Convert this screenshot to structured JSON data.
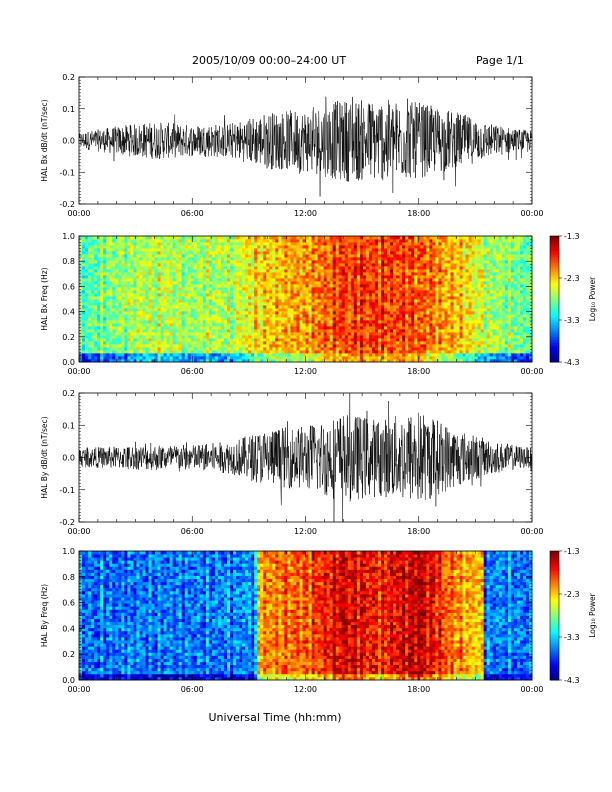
{
  "header": {
    "title": "2005/10/09   00:00–24:00 UT",
    "page": "Page 1/1"
  },
  "chart_data": [
    {
      "type": "line",
      "ylabel": "HAL Bx dB/dt (nT/sec)",
      "xlim_hours": [
        0,
        24
      ],
      "ylim": [
        -0.2,
        0.2
      ],
      "yticks": [
        "0.2",
        "0.1",
        "0.0",
        "-0.1",
        "-0.2"
      ],
      "yticks_values": [
        0.2,
        0.1,
        0.0,
        -0.1,
        -0.2
      ],
      "xticks": [
        "00:00",
        "06:00",
        "12:00",
        "18:00",
        "00:00"
      ],
      "envelope": {
        "x_hours": [
          0,
          2,
          4,
          6,
          8,
          10,
          12,
          14,
          16,
          18,
          20,
          22,
          24
        ],
        "amplitude": [
          0.025,
          0.045,
          0.06,
          0.05,
          0.055,
          0.09,
          0.1,
          0.13,
          0.13,
          0.12,
          0.09,
          0.05,
          0.03
        ]
      }
    },
    {
      "type": "heatmap",
      "ylabel": "HAL Bx Freq (Hz)",
      "ylim": [
        0.0,
        1.0
      ],
      "yticks": [
        "1.0",
        "0.8",
        "0.6",
        "0.4",
        "0.2",
        "0.0"
      ],
      "yticks_values": [
        1.0,
        0.8,
        0.6,
        0.4,
        0.2,
        0.0
      ],
      "xticks": [
        "00:00",
        "06:00",
        "12:00",
        "18:00",
        "00:00"
      ],
      "colorbar": {
        "label": "Log₁₀ Power",
        "ticks": [
          "-1.3",
          "-2.3",
          "-3.3",
          "-4.3"
        ],
        "ticks_values": [
          -1.3,
          -2.3,
          -3.3,
          -4.3
        ],
        "range": [
          -4.3,
          -1.3
        ]
      }
    },
    {
      "type": "line",
      "ylabel": "HAL By dB/dt (nT/sec)",
      "xlim_hours": [
        0,
        24
      ],
      "ylim": [
        -0.2,
        0.2
      ],
      "yticks": [
        "0.2",
        "0.1",
        "0.0",
        "-0.1",
        "-0.2"
      ],
      "yticks_values": [
        0.2,
        0.1,
        0.0,
        -0.1,
        -0.2
      ],
      "xticks": [
        "00:00",
        "06:00",
        "12:00",
        "18:00",
        "00:00"
      ],
      "envelope": {
        "x_hours": [
          0,
          2,
          4,
          6,
          8,
          10,
          12,
          14,
          16,
          18,
          20,
          22,
          24
        ],
        "amplitude": [
          0.03,
          0.035,
          0.04,
          0.04,
          0.05,
          0.09,
          0.1,
          0.14,
          0.12,
          0.15,
          0.09,
          0.05,
          0.03
        ]
      }
    },
    {
      "type": "heatmap",
      "ylabel": "HAL By Freq (Hz)",
      "ylim": [
        0.0,
        1.0
      ],
      "yticks": [
        "1.0",
        "0.8",
        "0.6",
        "0.4",
        "0.2",
        "0.0"
      ],
      "yticks_values": [
        1.0,
        0.8,
        0.6,
        0.4,
        0.2,
        0.0
      ],
      "xticks": [
        "00:00",
        "06:00",
        "12:00",
        "18:00",
        "00:00"
      ],
      "colorbar": {
        "label": "Log₁₀ Power",
        "ticks": [
          "-1.3",
          "-2.3",
          "-3.3",
          "-4.3"
        ],
        "ticks_values": [
          -1.3,
          -2.3,
          -3.3,
          -4.3
        ],
        "range": [
          -4.3,
          -1.3
        ]
      }
    }
  ],
  "xlabel": "Universal Time (hh:mm)"
}
